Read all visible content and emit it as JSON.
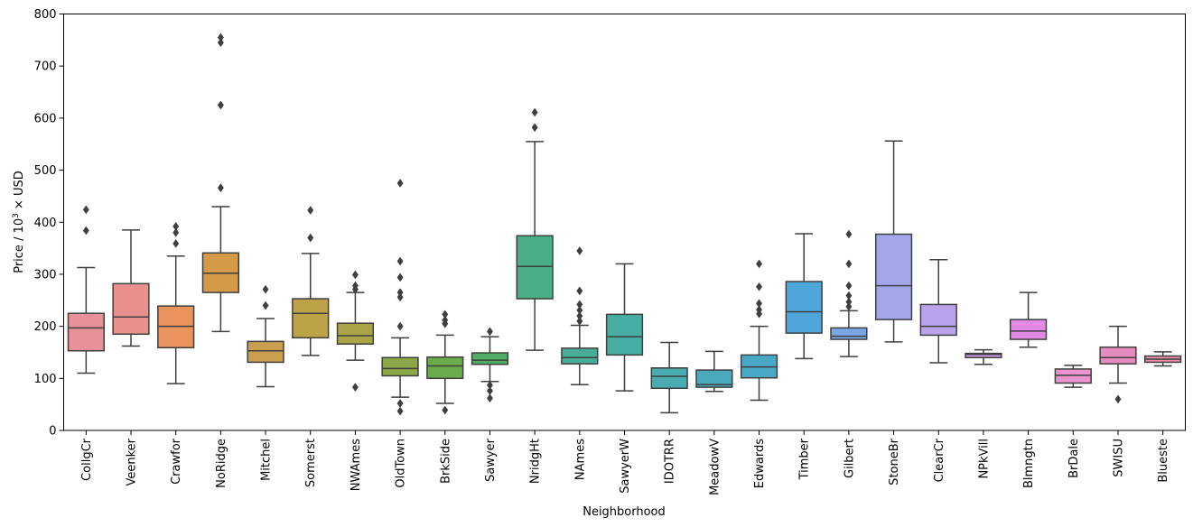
{
  "chart_data": {
    "type": "boxplot",
    "title": "",
    "xlabel": "Neighborhood",
    "ylabel_prefix": "Price / 10",
    "ylabel_exp": "3",
    "ylabel_suffix": " × USD",
    "ylim": [
      0,
      800
    ],
    "yticks": [
      0,
      100,
      200,
      300,
      400,
      500,
      600,
      700,
      800
    ],
    "grid": false,
    "boxes": [
      {
        "name": "CollgCr",
        "color": "#e8909a",
        "whislo": 110,
        "q1": 153,
        "median": 197,
        "q3": 225,
        "whishi": 313,
        "fliers": [
          384,
          424
        ]
      },
      {
        "name": "Veenker",
        "color": "#e8918c",
        "whislo": 162,
        "q1": 185,
        "median": 218,
        "q3": 282,
        "whishi": 385,
        "fliers": []
      },
      {
        "name": "Crawfor",
        "color": "#e8945a",
        "whislo": 90,
        "q1": 159,
        "median": 200,
        "q3": 239,
        "whishi": 335,
        "fliers": [
          359,
          380,
          392
        ]
      },
      {
        "name": "NoRidge",
        "color": "#d59a48",
        "whislo": 190,
        "q1": 265,
        "median": 302,
        "q3": 341,
        "whishi": 430,
        "fliers": [
          466,
          625,
          745,
          755
        ]
      },
      {
        "name": "Mitchel",
        "color": "#c9a050",
        "whislo": 84,
        "q1": 131,
        "median": 153,
        "q3": 171,
        "whishi": 215,
        "fliers": [
          240,
          271
        ]
      },
      {
        "name": "Somerst",
        "color": "#bca347",
        "whislo": 144,
        "q1": 178,
        "median": 225,
        "q3": 253,
        "whishi": 340,
        "fliers": [
          370,
          423
        ]
      },
      {
        "name": "NWAmes",
        "color": "#a9a445",
        "whislo": 135,
        "q1": 166,
        "median": 182,
        "q3": 206,
        "whishi": 265,
        "fliers": [
          83,
          271,
          278,
          299
        ]
      },
      {
        "name": "OldTown",
        "color": "#8ba747",
        "whislo": 64,
        "q1": 105,
        "median": 119,
        "q3": 140,
        "whishi": 178,
        "fliers": [
          37,
          52,
          200,
          256,
          265,
          294,
          325,
          475
        ]
      },
      {
        "name": "BrkSide",
        "color": "#6aab4a",
        "whislo": 52,
        "q1": 100,
        "median": 124,
        "q3": 141,
        "whishi": 183,
        "fliers": [
          39,
          205,
          212,
          223
        ]
      },
      {
        "name": "Sawyer",
        "color": "#4fae62",
        "whislo": 94,
        "q1": 127,
        "median": 135,
        "q3": 149,
        "whishi": 180,
        "fliers": [
          62,
          76,
          87,
          190
        ]
      },
      {
        "name": "NridgHt",
        "color": "#47ae85",
        "whislo": 154,
        "q1": 253,
        "median": 315,
        "q3": 374,
        "whishi": 555,
        "fliers": [
          582,
          611
        ]
      },
      {
        "name": "NAmes",
        "color": "#48ad96",
        "whislo": 88,
        "q1": 128,
        "median": 140,
        "q3": 158,
        "whishi": 202,
        "fliers": [
          210,
          220,
          231,
          242,
          268,
          345
        ]
      },
      {
        "name": "SawyerW",
        "color": "#48aea3",
        "whislo": 76,
        "q1": 145,
        "median": 180,
        "q3": 223,
        "whishi": 320,
        "fliers": []
      },
      {
        "name": "IDOTRR",
        "color": "#49acb0",
        "whislo": 34,
        "q1": 81,
        "median": 104,
        "q3": 120,
        "whishi": 169,
        "fliers": []
      },
      {
        "name": "MeadowV",
        "color": "#4aaabb",
        "whislo": 75,
        "q1": 83,
        "median": 88,
        "q3": 116,
        "whishi": 152,
        "fliers": []
      },
      {
        "name": "Edwards",
        "color": "#4aa8c7",
        "whislo": 58,
        "q1": 101,
        "median": 122,
        "q3": 145,
        "whishi": 200,
        "fliers": [
          224,
          232,
          244,
          276,
          320
        ]
      },
      {
        "name": "Timber",
        "color": "#4ea6d8",
        "whislo": 138,
        "q1": 187,
        "median": 228,
        "q3": 286,
        "whishi": 378,
        "fliers": []
      },
      {
        "name": "Gilbert",
        "color": "#79a6e6",
        "whislo": 142,
        "q1": 175,
        "median": 181,
        "q3": 197,
        "whishi": 230,
        "fliers": [
          238,
          247,
          259,
          278,
          320,
          377
        ]
      },
      {
        "name": "StoneBr",
        "color": "#a3a6ea",
        "whislo": 170,
        "q1": 213,
        "median": 278,
        "q3": 377,
        "whishi": 556,
        "fliers": []
      },
      {
        "name": "ClearCr",
        "color": "#b9a3ec",
        "whislo": 130,
        "q1": 183,
        "median": 200,
        "q3": 242,
        "whishi": 328,
        "fliers": []
      },
      {
        "name": "NPkVill",
        "color": "#cc9ded",
        "whislo": 127,
        "q1": 140,
        "median": 146,
        "q3": 148,
        "whishi": 155,
        "fliers": []
      },
      {
        "name": "Blmngtn",
        "color": "#e189e4",
        "whislo": 160,
        "q1": 175,
        "median": 191,
        "q3": 213,
        "whishi": 265,
        "fliers": []
      },
      {
        "name": "BrDale",
        "color": "#e993cf",
        "whislo": 83,
        "q1": 91,
        "median": 106,
        "q3": 118,
        "whishi": 125,
        "fliers": []
      },
      {
        "name": "SWISU",
        "color": "#e68cbf",
        "whislo": 91,
        "q1": 128,
        "median": 140,
        "q3": 160,
        "whishi": 200,
        "fliers": [
          60
        ]
      },
      {
        "name": "Blueste",
        "color": "#e890a8",
        "whislo": 124,
        "q1": 131,
        "median": 137,
        "q3": 143,
        "whishi": 151,
        "fliers": []
      }
    ]
  }
}
